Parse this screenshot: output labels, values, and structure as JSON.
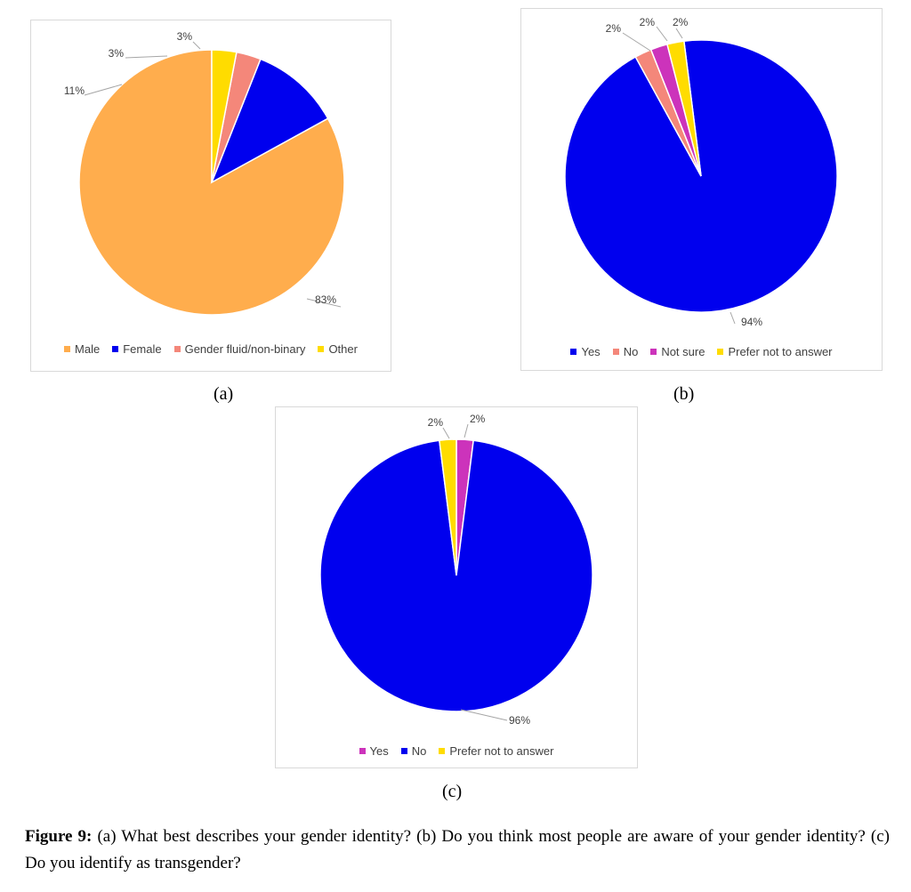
{
  "chart_data": [
    {
      "type": "pie",
      "panel_label": "(a)",
      "categories": [
        "Male",
        "Female",
        "Gender fluid/non-binary",
        "Other"
      ],
      "values": [
        83,
        11,
        3,
        3
      ],
      "data_labels": [
        "83%",
        "11%",
        "3%",
        "3%"
      ],
      "colors": [
        "#ffad4d",
        "#0000ee",
        "#f4877a",
        "#ffdc00"
      ],
      "legend_position": "bottom"
    },
    {
      "type": "pie",
      "panel_label": "(b)",
      "categories": [
        "Yes",
        "No",
        "Not sure",
        "Prefer not to answer"
      ],
      "values": [
        94,
        2,
        2,
        2
      ],
      "data_labels": [
        "94%",
        "2%",
        "2%",
        "2%"
      ],
      "colors": [
        "#0000ee",
        "#f4877a",
        "#cc33bb",
        "#ffdc00"
      ],
      "legend_position": "bottom"
    },
    {
      "type": "pie",
      "panel_label": "(c)",
      "categories": [
        "Yes",
        "No",
        "Prefer not to answer"
      ],
      "values": [
        2,
        96,
        2
      ],
      "data_labels": [
        "2%",
        "96%",
        "2%"
      ],
      "colors": [
        "#cc33bb",
        "#0000ee",
        "#ffdc00"
      ],
      "legend_position": "bottom"
    }
  ],
  "caption": {
    "figure_label": "Figure 9:",
    "text": " (a) What best describes your gender identity? (b) Do you think most people are aware of your gender identity? (c) Do you identify as transgender?"
  }
}
